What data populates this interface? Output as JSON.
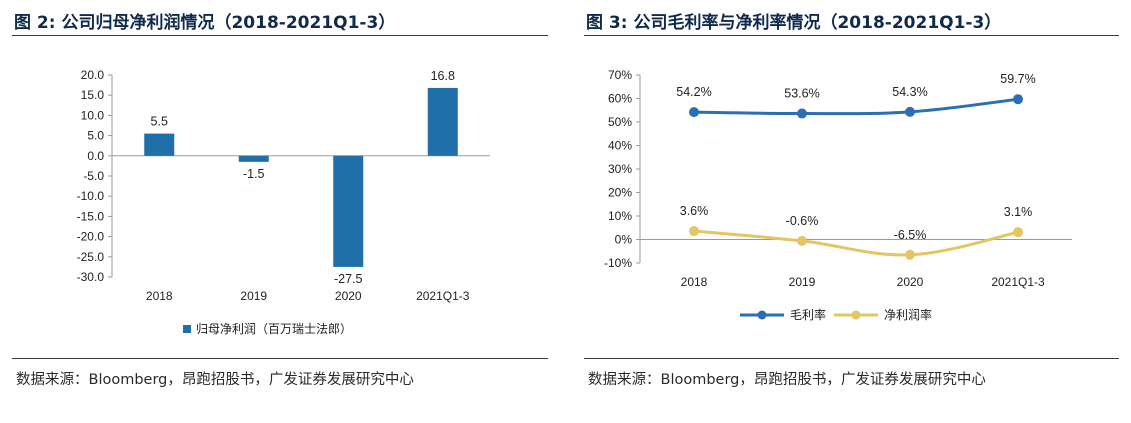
{
  "left": {
    "title": "图 2:  公司归母净利润情况（2018-2021Q1-3）",
    "source": "数据来源：Bloomberg，昂跑招股书，广发证券发展研究中心",
    "chart_data": {
      "type": "bar",
      "categories": [
        "2018",
        "2019",
        "2020",
        "2021Q1-3"
      ],
      "series": [
        {
          "name": "归母净利润（百万瑞士法郎）",
          "values": [
            5.5,
            -1.5,
            -27.5,
            16.8
          ]
        }
      ],
      "data_labels": [
        "5.5",
        "-1.5",
        "-27.5",
        "16.8"
      ],
      "ylim": [
        -30,
        20
      ],
      "yticks": [
        "20.0",
        "15.0",
        "10.0",
        "5.0",
        "0.0",
        "-5.0",
        "-10.0",
        "-15.0",
        "-20.0",
        "-25.0",
        "-30.0"
      ],
      "grid": false,
      "legend": "bottom",
      "colors": {
        "bar": "#1f6fa8"
      }
    }
  },
  "right": {
    "title": "图 3:  公司毛利率与净利率情况（2018-2021Q1-3）",
    "source": "数据来源：Bloomberg，昂跑招股书，广发证券发展研究中心",
    "chart_data": {
      "type": "line",
      "categories": [
        "2018",
        "2019",
        "2020",
        "2021Q1-3"
      ],
      "series": [
        {
          "name": "毛利率",
          "values": [
            54.2,
            53.6,
            54.3,
            59.7
          ],
          "labels": [
            "54.2%",
            "53.6%",
            "54.3%",
            "59.7%"
          ],
          "color": "#2a6fb1"
        },
        {
          "name": "净利润率",
          "values": [
            3.6,
            -0.6,
            -6.5,
            3.1
          ],
          "labels": [
            "3.6%",
            "-0.6%",
            "-6.5%",
            "3.1%"
          ],
          "color": "#e3c565"
        }
      ],
      "ylim": [
        -10,
        70
      ],
      "yticks": [
        "70%",
        "60%",
        "50%",
        "40%",
        "30%",
        "20%",
        "10%",
        "0%",
        "-10%"
      ],
      "grid": false,
      "legend": "bottom"
    }
  }
}
